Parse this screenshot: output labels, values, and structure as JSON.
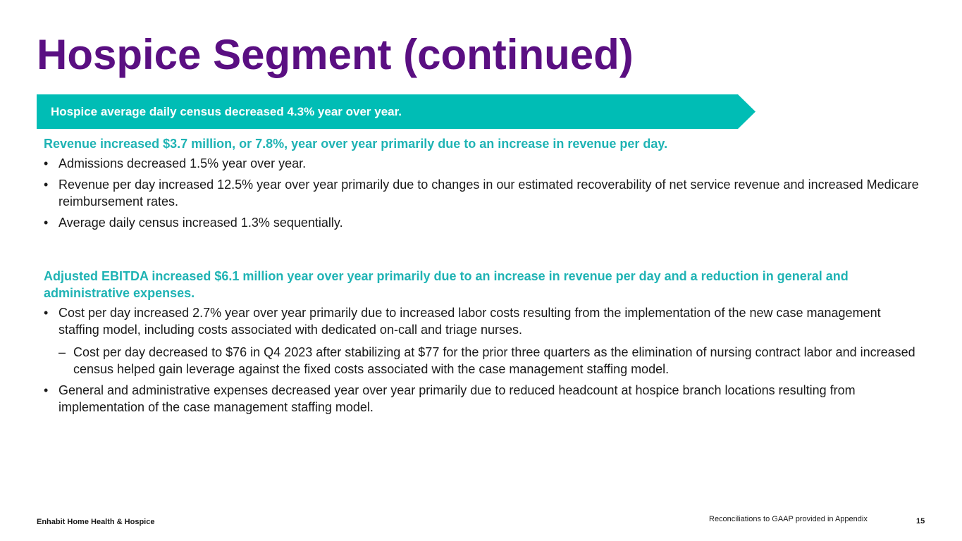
{
  "slide": {
    "title": "Hospice Segment (continued)"
  },
  "banner": {
    "text": "Hospice average daily census decreased 4.3% year over year.",
    "color": "#00bdb5"
  },
  "sections": [
    {
      "heading": "Revenue increased $3.7 million, or 7.8%, year over year primarily due to an increase in revenue per day.",
      "bullets": [
        "Admissions decreased 1.5% year over year.",
        "Revenue per day increased 12.5% year over year primarily due to changes in our estimated recoverability of net service revenue and increased Medicare reimbursement rates.",
        "Average daily census increased 1.3% sequentially."
      ]
    },
    {
      "heading": "Adjusted EBITDA increased $6.1 million year over year primarily due to an increase in revenue per day and a reduction in general and administrative expenses.",
      "bullets": [
        "Cost per day increased 2.7% year over year primarily due to increased labor costs resulting from the implementation of the new case management staffing model, including costs associated with dedicated on-call and triage nurses.",
        "General and administrative expenses decreased year over year primarily due to reduced headcount at hospice branch locations resulting from implementation of the case management staffing model."
      ],
      "sub_bullets": [
        "Cost per day decreased to $76 in Q4 2023 after stabilizing at $77 for the prior three quarters as the elimination of nursing contract labor and increased census helped gain leverage against the fixed costs associated with the case management staffing model."
      ]
    }
  ],
  "footer": {
    "company": "Enhabit Home Health & Hospice",
    "note": "Reconciliations to GAAP provided in Appendix",
    "page_number": "15"
  },
  "colors": {
    "title": "#5a0f82",
    "heading": "#1fb3b4",
    "body_text": "#1a1a1a"
  }
}
